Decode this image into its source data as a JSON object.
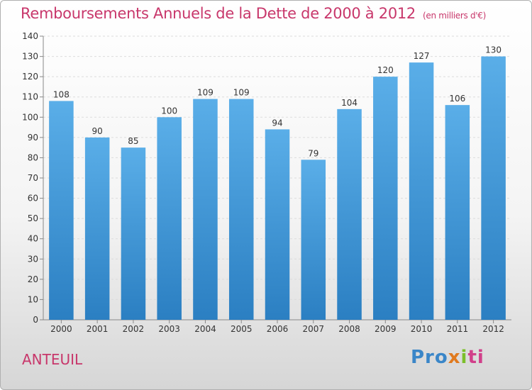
{
  "header": {
    "title": "Remboursements Annuels de la Dette de 2000 à 2012",
    "unit": "(en milliers d'€)"
  },
  "footer": {
    "place": "ANTEUIL",
    "logo": {
      "parts": [
        "Pro",
        "x",
        "i",
        "ti"
      ]
    }
  },
  "colors": {
    "bar": "#3a95d8",
    "bar_top": "#5aaee8",
    "title": "#c8376b"
  },
  "chart_data": {
    "type": "bar",
    "title": "Remboursements Annuels de la Dette de 2000 à 2012",
    "subtitle": "(en milliers d'€)",
    "categories": [
      "2000",
      "2001",
      "2002",
      "2003",
      "2004",
      "2005",
      "2006",
      "2007",
      "2008",
      "2009",
      "2010",
      "2011",
      "2012"
    ],
    "values": [
      108,
      90,
      85,
      100,
      109,
      109,
      94,
      79,
      104,
      120,
      127,
      106,
      130
    ],
    "ylim": [
      0,
      140
    ],
    "yticks": [
      0,
      10,
      20,
      30,
      40,
      50,
      60,
      70,
      80,
      90,
      100,
      110,
      120,
      130,
      140
    ],
    "grid": true,
    "data_labels": true
  }
}
